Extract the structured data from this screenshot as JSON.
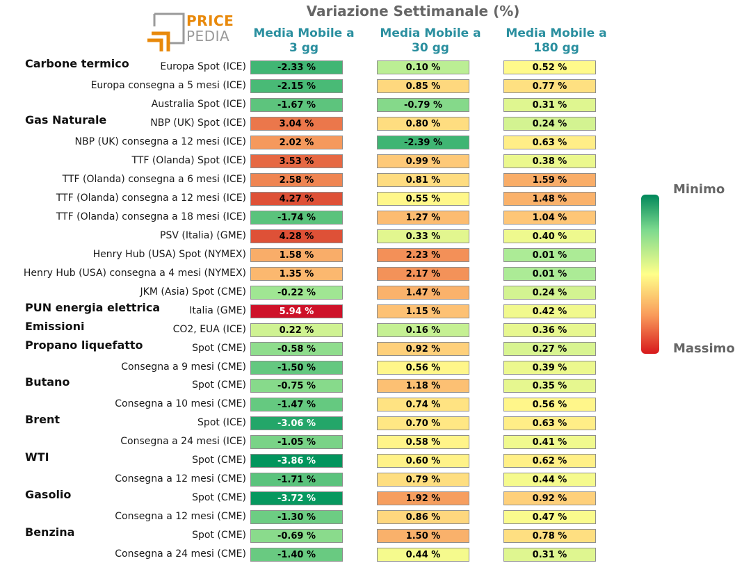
{
  "chart_data": {
    "type": "table",
    "title": "Variazione Settimanale (%)",
    "columns": [
      {
        "line1": "Media Mobile a",
        "line2": "3 gg"
      },
      {
        "line1": "Media Mobile a",
        "line2": "30 gg"
      },
      {
        "line1": "Media Mobile a",
        "line2": "180 gg"
      }
    ],
    "legend": {
      "min_label": "Minimo",
      "max_label": "Massimo"
    },
    "groups": [
      {
        "name": "Carbone termico",
        "first_row": 0
      },
      {
        "name": "Gas Naturale",
        "first_row": 3
      },
      {
        "name": "PUN energia elettrica",
        "first_row": 13
      },
      {
        "name": "Emissioni",
        "first_row": 14
      },
      {
        "name": "Propano liquefatto",
        "first_row": 15
      },
      {
        "name": "Butano",
        "first_row": 17
      },
      {
        "name": "Brent",
        "first_row": 19
      },
      {
        "name": "WTI",
        "first_row": 21
      },
      {
        "name": "Gasolio",
        "first_row": 23
      },
      {
        "name": "Benzina",
        "first_row": 25
      }
    ],
    "rows": [
      {
        "label": "Europa Spot (ICE)",
        "values": [
          -2.33,
          0.1,
          0.52
        ]
      },
      {
        "label": "Europa consegna a 5 mesi (ICE)",
        "values": [
          -2.15,
          0.85,
          0.77
        ]
      },
      {
        "label": "Australia Spot (ICE)",
        "values": [
          -1.67,
          -0.79,
          0.31
        ]
      },
      {
        "label": "NBP (UK) Spot (ICE)",
        "values": [
          3.04,
          0.8,
          0.24
        ]
      },
      {
        "label": "NBP (UK) consegna a 12 mesi (ICE)",
        "values": [
          2.02,
          -2.39,
          0.63
        ]
      },
      {
        "label": "TTF (Olanda) Spot (ICE)",
        "values": [
          3.53,
          0.99,
          0.38
        ]
      },
      {
        "label": "TTF (Olanda) consegna a 6 mesi (ICE)",
        "values": [
          2.58,
          0.81,
          1.59
        ]
      },
      {
        "label": "TTF (Olanda) consegna a 12 mesi (ICE)",
        "values": [
          4.27,
          0.55,
          1.48
        ]
      },
      {
        "label": "TTF (Olanda) consegna a 18 mesi (ICE)",
        "values": [
          -1.74,
          1.27,
          1.04
        ]
      },
      {
        "label": "PSV (Italia) (GME)",
        "values": [
          4.28,
          0.33,
          0.4
        ]
      },
      {
        "label": "Henry Hub (USA) Spot (NYMEX)",
        "values": [
          1.58,
          2.23,
          0.01
        ]
      },
      {
        "label": "Henry Hub (USA) consegna a 4 mesi (NYMEX)",
        "values": [
          1.35,
          2.17,
          0.01
        ]
      },
      {
        "label": "JKM (Asia) Spot (CME)",
        "values": [
          -0.22,
          1.47,
          0.24
        ]
      },
      {
        "label": "Italia (GME)",
        "values": [
          5.94,
          1.15,
          0.42
        ]
      },
      {
        "label": "CO2, EUA (ICE)",
        "values": [
          0.22,
          0.16,
          0.36
        ]
      },
      {
        "label": "Spot (CME)",
        "values": [
          -0.58,
          0.92,
          0.27
        ]
      },
      {
        "label": "Consegna a 9 mesi (CME)",
        "values": [
          -1.5,
          0.56,
          0.39
        ]
      },
      {
        "label": "Spot (CME)",
        "values": [
          -0.75,
          1.18,
          0.35
        ]
      },
      {
        "label": "Consegna a 10 mesi (CME)",
        "values": [
          -1.47,
          0.74,
          0.56
        ]
      },
      {
        "label": "Spot (ICE)",
        "values": [
          -3.06,
          0.7,
          0.63
        ]
      },
      {
        "label": "Consegna a 24 mesi (ICE)",
        "values": [
          -1.05,
          0.58,
          0.41
        ]
      },
      {
        "label": "Spot (CME)",
        "values": [
          -3.86,
          0.6,
          0.62
        ]
      },
      {
        "label": "Consegna a 12 mesi (CME)",
        "values": [
          -1.71,
          0.79,
          0.44
        ]
      },
      {
        "label": "Spot (CME)",
        "values": [
          -3.72,
          1.92,
          0.92
        ]
      },
      {
        "label": "Consegna a 12 mesi (CME)",
        "values": [
          -1.3,
          0.86,
          0.47
        ]
      },
      {
        "label": "Spot (CME)",
        "values": [
          -0.69,
          1.5,
          0.78
        ]
      },
      {
        "label": "Consegna a 24 mesi (CME)",
        "values": [
          -1.4,
          0.44,
          0.31
        ]
      }
    ]
  },
  "logo": {
    "word1": "PRICE",
    "word2": "PEDIA"
  },
  "colors": {
    "header": "#2a8f9f",
    "title": "#666666",
    "brand_orange": "#e8890b",
    "brand_gray": "#9a9a9a"
  }
}
